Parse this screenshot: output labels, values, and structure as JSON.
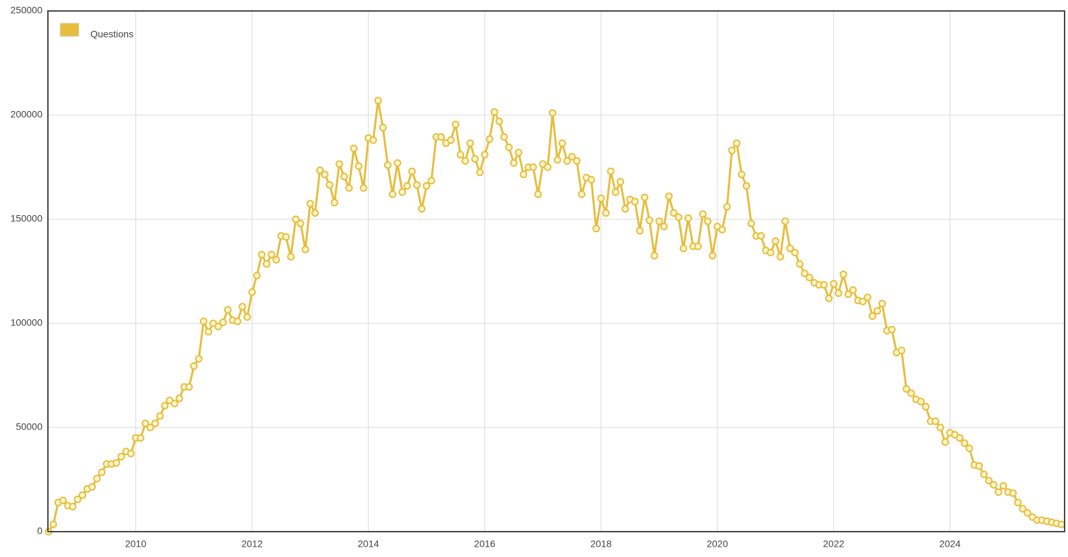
{
  "chart_data": {
    "type": "line",
    "x": [
      2008.5,
      2008.583,
      2008.667,
      2008.75,
      2008.833,
      2008.917,
      2009,
      2009.083,
      2009.167,
      2009.25,
      2009.333,
      2009.417,
      2009.5,
      2009.583,
      2009.667,
      2009.75,
      2009.833,
      2009.917,
      2010,
      2010.083,
      2010.167,
      2010.25,
      2010.333,
      2010.417,
      2010.5,
      2010.583,
      2010.667,
      2010.75,
      2010.833,
      2010.917,
      2011,
      2011.083,
      2011.167,
      2011.25,
      2011.333,
      2011.417,
      2011.5,
      2011.583,
      2011.667,
      2011.75,
      2011.833,
      2011.917,
      2012,
      2012.083,
      2012.167,
      2012.25,
      2012.333,
      2012.417,
      2012.5,
      2012.583,
      2012.667,
      2012.75,
      2012.833,
      2012.917,
      2013,
      2013.083,
      2013.167,
      2013.25,
      2013.333,
      2013.417,
      2013.5,
      2013.583,
      2013.667,
      2013.75,
      2013.833,
      2013.917,
      2014,
      2014.083,
      2014.167,
      2014.25,
      2014.333,
      2014.417,
      2014.5,
      2014.583,
      2014.667,
      2014.75,
      2014.833,
      2014.917,
      2015,
      2015.083,
      2015.167,
      2015.25,
      2015.333,
      2015.417,
      2015.5,
      2015.583,
      2015.667,
      2015.75,
      2015.833,
      2015.917,
      2016,
      2016.083,
      2016.167,
      2016.25,
      2016.333,
      2016.417,
      2016.5,
      2016.583,
      2016.667,
      2016.75,
      2016.833,
      2016.917,
      2017,
      2017.083,
      2017.167,
      2017.25,
      2017.333,
      2017.417,
      2017.5,
      2017.583,
      2017.667,
      2017.75,
      2017.833,
      2017.917,
      2018,
      2018.083,
      2018.167,
      2018.25,
      2018.333,
      2018.417,
      2018.5,
      2018.583,
      2018.667,
      2018.75,
      2018.833,
      2018.917,
      2019,
      2019.083,
      2019.167,
      2019.25,
      2019.333,
      2019.417,
      2019.5,
      2019.583,
      2019.667,
      2019.75,
      2019.833,
      2019.917,
      2020,
      2020.083,
      2020.167,
      2020.25,
      2020.333,
      2020.417,
      2020.5,
      2020.583,
      2020.667,
      2020.75,
      2020.833,
      2020.917,
      2021,
      2021.083,
      2021.167,
      2021.25,
      2021.333,
      2021.417,
      2021.5,
      2021.583,
      2021.667,
      2021.75,
      2021.833,
      2021.917,
      2022,
      2022.083,
      2022.167,
      2022.25,
      2022.333,
      2022.417,
      2022.5,
      2022.583,
      2022.667,
      2022.75,
      2022.833,
      2022.917,
      2023,
      2023.083,
      2023.167,
      2023.25,
      2023.333,
      2023.417,
      2023.5,
      2023.583,
      2023.667,
      2023.75,
      2023.833,
      2023.917,
      2024,
      2024.083,
      2024.167,
      2024.25,
      2024.333,
      2024.417,
      2024.5,
      2024.583,
      2024.667,
      2024.75,
      2024.833,
      2024.917,
      2025,
      2025.083,
      2025.167,
      2025.25,
      2025.333,
      2025.417,
      2025.5,
      2025.583,
      2025.667,
      2025.75,
      2025.833,
      2025.917
    ],
    "series": [
      {
        "name": "Questions",
        "color": "#e6bd3c",
        "values": [
          0,
          3500,
          14000,
          15000,
          12500,
          12000,
          15500,
          17500,
          20500,
          21500,
          25500,
          28500,
          32500,
          32500,
          33000,
          36000,
          38500,
          37500,
          45000,
          45000,
          52000,
          50000,
          52000,
          55500,
          60500,
          63000,
          61500,
          64000,
          69500,
          69500,
          79500,
          83000,
          101000,
          96000,
          100000,
          98500,
          100500,
          106500,
          101500,
          101000,
          108000,
          103000,
          115000,
          123000,
          133000,
          128500,
          133000,
          130500,
          142000,
          141500,
          132000,
          150000,
          148000,
          135500,
          157500,
          153000,
          173500,
          171500,
          166500,
          158000,
          176500,
          170500,
          165000,
          184000,
          175500,
          165000,
          189000,
          188000,
          207000,
          194000,
          176000,
          162000,
          177000,
          163000,
          166000,
          173000,
          166500,
          155000,
          166000,
          168500,
          189500,
          189500,
          186500,
          188000,
          195500,
          181000,
          178000,
          186500,
          179000,
          172500,
          181000,
          188500,
          201500,
          197000,
          189500,
          184500,
          177000,
          182000,
          171500,
          175000,
          175000,
          162000,
          176500,
          175000,
          201000,
          178500,
          186500,
          178000,
          180000,
          178000,
          162000,
          170000,
          169000,
          145500,
          160000,
          153000,
          173000,
          163000,
          168000,
          155000,
          159500,
          158500,
          144500,
          160500,
          149500,
          132500,
          149000,
          146500,
          161000,
          153000,
          151000,
          136000,
          150500,
          137000,
          137000,
          152500,
          149000,
          132500,
          146500,
          145000,
          156000,
          183000,
          186500,
          171500,
          166000,
          148000,
          142000,
          142000,
          135000,
          134000,
          139500,
          132000,
          149000,
          136000,
          134000,
          128500,
          124000,
          122000,
          119500,
          118500,
          118500,
          112000,
          119000,
          114500,
          123500,
          114000,
          116000,
          111000,
          110500,
          112500,
          103500,
          106000,
          109500,
          96500,
          97000,
          86000,
          87000,
          68500,
          66500,
          63500,
          62500,
          60000,
          53000,
          53000,
          50000,
          43000,
          47500,
          46500,
          45000,
          42500,
          40000,
          32000,
          31500,
          27500,
          24500,
          22500,
          19000,
          22000,
          19000,
          18500,
          14000,
          11000,
          9000,
          7000,
          5500,
          5500,
          5000,
          4500,
          4000,
          3500
        ]
      }
    ],
    "xlim": [
      2008.49,
      2025.97
    ],
    "xticks": [
      2010,
      2012,
      2014,
      2016,
      2018,
      2020,
      2022,
      2024
    ],
    "ylim": [
      0,
      250000
    ],
    "yticks": [
      0,
      50000,
      100000,
      150000,
      200000,
      250000
    ],
    "grid": true
  }
}
